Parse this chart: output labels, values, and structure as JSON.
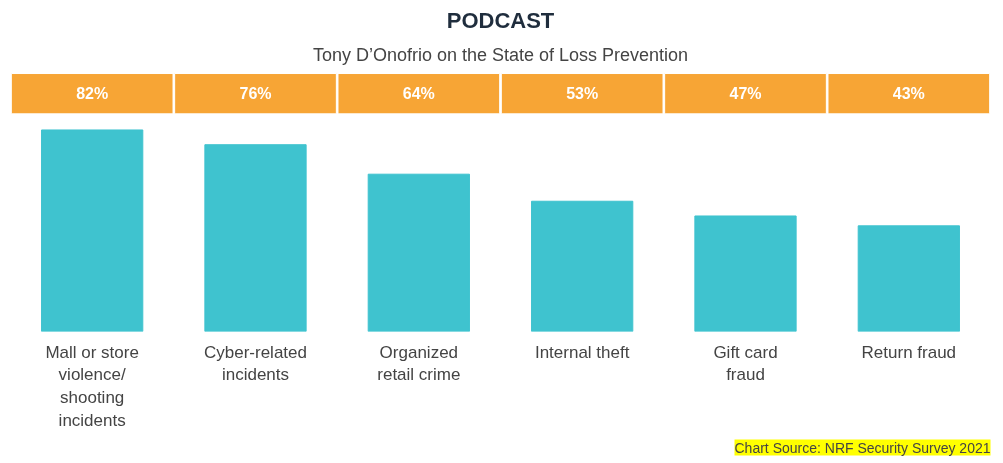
{
  "chart_data": {
    "type": "bar",
    "title": "PODCAST",
    "subtitle": "Tony D’Onofrio on the State of Loss Prevention",
    "categories": [
      "Mall or store\nviolence/\nshooting\nincidents",
      "Cyber-related\nincidents",
      "Organized\nretail crime",
      "Internal theft",
      "Gift card\nfraud",
      "Return fraud"
    ],
    "values": [
      82,
      76,
      64,
      53,
      47,
      43
    ],
    "color": "#3fc3cf",
    "value_labels": [
      "82%",
      "76%",
      "64%",
      "53%",
      "47%",
      "43%"
    ],
    "grid": false,
    "annotations": [
      "Chart Source: NRF Security Survey 2021"
    ]
  }
}
